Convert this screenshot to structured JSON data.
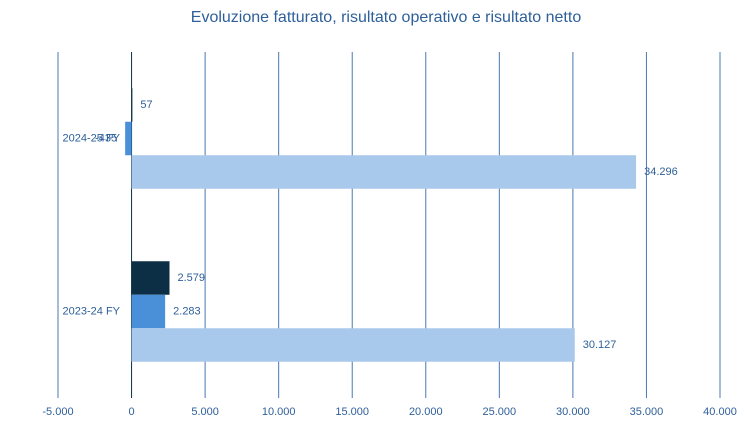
{
  "chart_data": {
    "type": "hbar",
    "title": "Evoluzione fatturato, risultato operativo e risultato netto",
    "categories": [
      "2024-25 FY",
      "2023-24 FY"
    ],
    "series": [
      {
        "color": "#0d2f45",
        "values": [
          57,
          2579
        ],
        "value_labels": [
          "57",
          "2.579"
        ]
      },
      {
        "color": "#4a90d9",
        "values": [
          -435,
          2283
        ],
        "value_labels": [
          "-435",
          "2.283"
        ]
      },
      {
        "color": "#a8c8ec",
        "values": [
          34296,
          30127
        ],
        "value_labels": [
          "34.296",
          "30.127"
        ]
      }
    ],
    "xlim": [
      -5000,
      40000
    ],
    "xticks": [
      {
        "value": -5000,
        "label": "-5.000"
      },
      0,
      {
        "value": 5000,
        "label": "5.000"
      },
      {
        "value": 10000,
        "label": "10.000"
      },
      {
        "value": 15000,
        "label": "15.000"
      },
      {
        "value": 20000,
        "label": "20.000"
      },
      {
        "value": 25000,
        "label": "25.000"
      },
      {
        "value": 30000,
        "label": "30.000"
      },
      {
        "value": 35000,
        "label": "35.000"
      },
      {
        "value": 40000,
        "label": "40.000"
      }
    ],
    "grid": true
  }
}
